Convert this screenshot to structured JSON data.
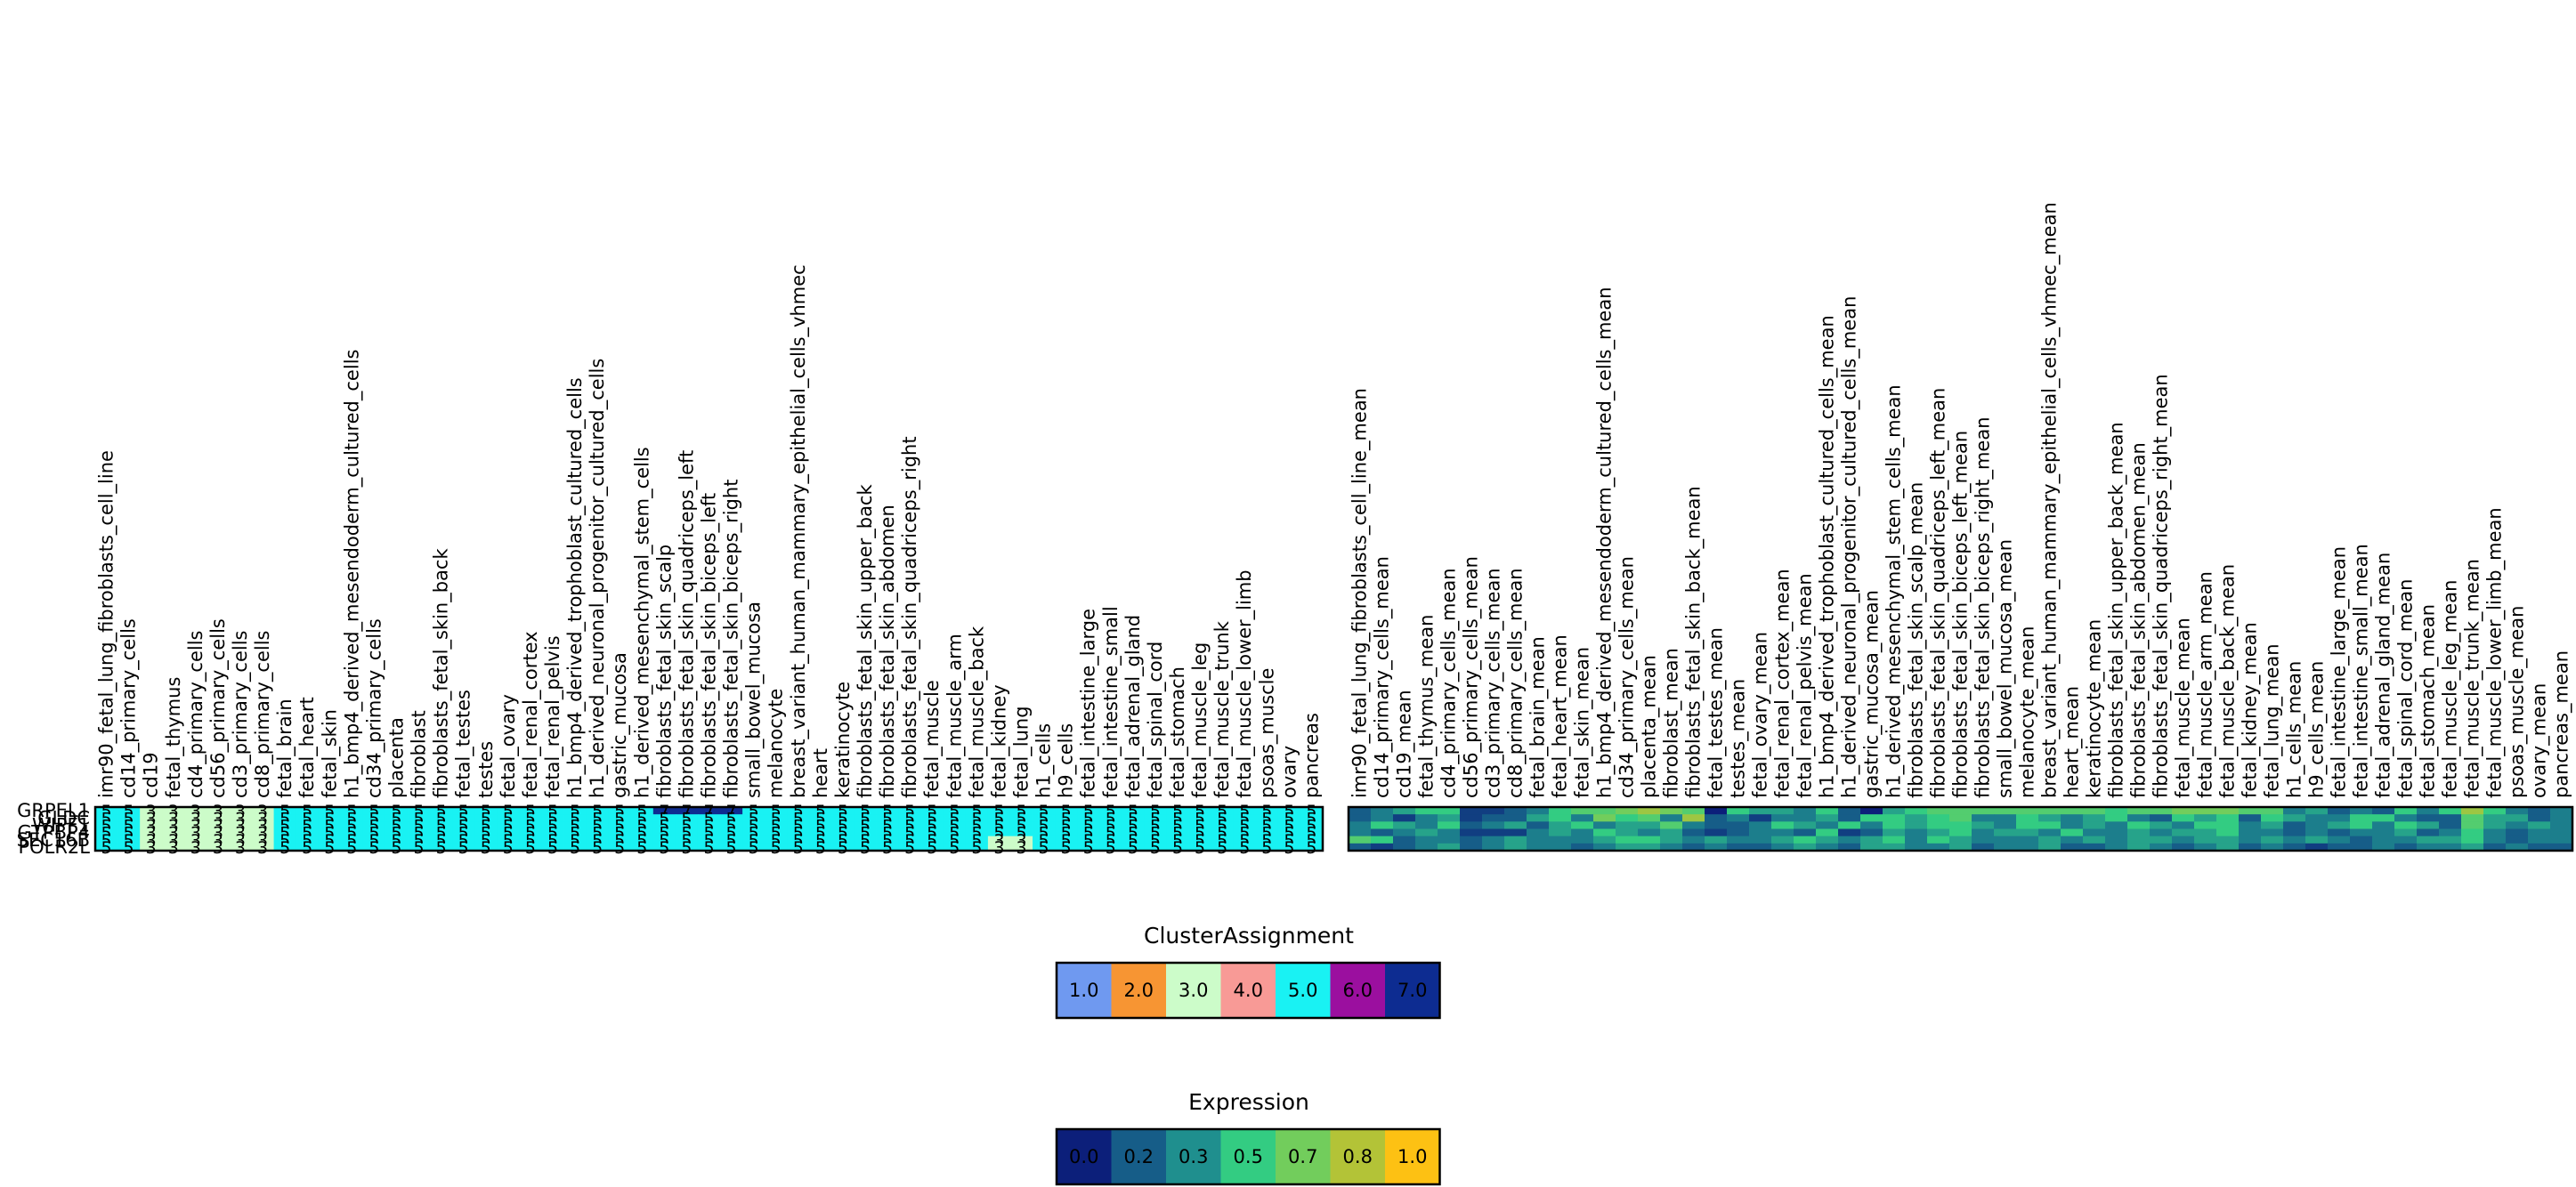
{
  "chart_data": [
    {
      "type": "heatmap",
      "title": "",
      "rows": [
        "GRPEL1",
        "GLDC",
        "WIPF1",
        "GTPBP4",
        "SEC16B",
        "POLR2L"
      ],
      "columns": [
        "imr90_fetal_lung_fibroblasts_cell_line",
        "cd14_primary_cells",
        "cd19",
        "fetal_thymus",
        "cd4_primary_cells",
        "cd56_primary_cells",
        "cd3_primary_cells",
        "cd8_primary_cells",
        "fetal_brain",
        "fetal_heart",
        "fetal_skin",
        "h1_bmp4_derived_mesendoderm_cultured_cells",
        "cd34_primary_cells",
        "placenta",
        "fibroblast",
        "fibroblasts_fetal_skin_back",
        "fetal_testes",
        "testes",
        "fetal_ovary",
        "fetal_renal_cortex",
        "fetal_renal_pelvis",
        "h1_bmp4_derived_trophoblast_cultured_cells",
        "h1_derived_neuronal_progenitor_cultured_cells",
        "gastric_mucosa",
        "h1_derived_mesenchymal_stem_cells",
        "fibroblasts_fetal_skin_scalp",
        "fibroblasts_fetal_skin_quadriceps_left",
        "fibroblasts_fetal_skin_biceps_left",
        "fibroblasts_fetal_skin_biceps_right",
        "small_bowel_mucosa",
        "melanocyte",
        "breast_variant_human_mammary_epithelial_cells_vhmec",
        "heart",
        "keratinocyte",
        "fibroblasts_fetal_skin_upper_back",
        "fibroblasts_fetal_skin_abdomen",
        "fibroblasts_fetal_skin_quadriceps_right",
        "fetal_muscle",
        "fetal_muscle_arm",
        "fetal_muscle_back",
        "fetal_kidney",
        "fetal_lung",
        "h1_cells",
        "h9_cells",
        "fetal_intestine_large",
        "fetal_intestine_small",
        "fetal_adrenal_gland",
        "fetal_spinal_cord",
        "fetal_stomach",
        "fetal_muscle_leg",
        "fetal_muscle_trunk",
        "fetal_muscle_lower_limb",
        "psoas_muscle",
        "ovary",
        "pancreas"
      ],
      "values": [
        [
          5,
          5,
          3,
          3,
          3,
          3,
          3,
          3,
          5,
          5,
          5,
          5,
          5,
          5,
          5,
          5,
          5,
          5,
          5,
          5,
          5,
          5,
          5,
          5,
          5,
          7,
          7,
          7,
          7,
          5,
          5,
          5,
          5,
          5,
          5,
          5,
          5,
          5,
          5,
          5,
          5,
          5,
          5,
          5,
          5,
          5,
          5,
          5,
          5,
          5,
          5,
          5,
          5,
          5,
          5
        ],
        [
          5,
          5,
          3,
          3,
          3,
          3,
          3,
          3,
          5,
          5,
          5,
          5,
          5,
          5,
          5,
          5,
          5,
          5,
          5,
          5,
          5,
          5,
          5,
          5,
          5,
          5,
          5,
          5,
          5,
          5,
          5,
          5,
          5,
          5,
          5,
          5,
          5,
          5,
          5,
          5,
          5,
          5,
          5,
          5,
          5,
          5,
          5,
          5,
          5,
          5,
          5,
          5,
          5,
          5,
          5
        ],
        [
          5,
          5,
          3,
          3,
          3,
          3,
          3,
          3,
          5,
          5,
          5,
          5,
          5,
          5,
          5,
          5,
          5,
          5,
          5,
          5,
          5,
          5,
          5,
          5,
          5,
          5,
          5,
          5,
          5,
          5,
          5,
          5,
          5,
          5,
          5,
          5,
          5,
          5,
          5,
          5,
          5,
          5,
          5,
          5,
          5,
          5,
          5,
          5,
          5,
          5,
          5,
          5,
          5,
          5,
          5
        ],
        [
          5,
          5,
          3,
          3,
          3,
          3,
          3,
          3,
          5,
          5,
          5,
          5,
          5,
          5,
          5,
          5,
          5,
          5,
          5,
          5,
          5,
          5,
          5,
          5,
          5,
          5,
          5,
          5,
          5,
          5,
          5,
          5,
          5,
          5,
          5,
          5,
          5,
          5,
          5,
          5,
          5,
          5,
          5,
          5,
          5,
          5,
          5,
          5,
          5,
          5,
          5,
          5,
          5,
          5,
          5
        ],
        [
          5,
          5,
          3,
          3,
          3,
          3,
          3,
          3,
          5,
          5,
          5,
          5,
          5,
          5,
          5,
          5,
          5,
          5,
          5,
          5,
          5,
          5,
          5,
          5,
          5,
          5,
          5,
          5,
          5,
          5,
          5,
          5,
          5,
          5,
          5,
          5,
          5,
          5,
          5,
          5,
          3,
          3,
          5,
          5,
          5,
          5,
          5,
          5,
          5,
          5,
          5,
          5,
          5,
          5,
          5
        ],
        [
          5,
          5,
          3,
          3,
          3,
          3,
          3,
          3,
          5,
          5,
          5,
          5,
          5,
          5,
          5,
          5,
          5,
          5,
          5,
          5,
          5,
          5,
          5,
          5,
          5,
          5,
          5,
          5,
          5,
          5,
          5,
          5,
          5,
          5,
          5,
          5,
          5,
          5,
          5,
          5,
          3,
          3,
          5,
          5,
          5,
          5,
          5,
          5,
          5,
          5,
          5,
          5,
          5,
          5,
          5
        ]
      ],
      "annotated": true,
      "colorbar": "ClusterAssignment"
    },
    {
      "type": "heatmap",
      "title": "",
      "rows": [
        "GRPEL1",
        "GLDC",
        "WIPF1",
        "GTPBP4",
        "SEC16B",
        "POLR2L"
      ],
      "columns": [
        "imr90_fetal_lung_fibroblasts_cell_line_mean",
        "cd14_primary_cells_mean",
        "cd19_mean",
        "fetal_thymus_mean",
        "cd4_primary_cells_mean",
        "cd56_primary_cells_mean",
        "cd3_primary_cells_mean",
        "cd8_primary_cells_mean",
        "fetal_brain_mean",
        "fetal_heart_mean",
        "fetal_skin_mean",
        "h1_bmp4_derived_mesendoderm_cultured_cells_mean",
        "cd34_primary_cells_mean",
        "placenta_mean",
        "fibroblast_mean",
        "fibroblasts_fetal_skin_back_mean",
        "fetal_testes_mean",
        "testes_mean",
        "fetal_ovary_mean",
        "fetal_renal_cortex_mean",
        "fetal_renal_pelvis_mean",
        "h1_bmp4_derived_trophoblast_cultured_cells_mean",
        "h1_derived_neuronal_progenitor_cultured_cells_mean",
        "gastric_mucosa_mean",
        "h1_derived_mesenchymal_stem_cells_mean",
        "fibroblasts_fetal_skin_scalp_mean",
        "fibroblasts_fetal_skin_quadriceps_left_mean",
        "fibroblasts_fetal_skin_biceps_left_mean",
        "fibroblasts_fetal_skin_biceps_right_mean",
        "small_bowel_mucosa_mean",
        "melanocyte_mean",
        "breast_variant_human_mammary_epithelial_cells_vhmec_mean",
        "heart_mean",
        "keratinocyte_mean",
        "fibroblasts_fetal_skin_upper_back_mean",
        "fibroblasts_fetal_skin_abdomen_mean",
        "fibroblasts_fetal_skin_quadriceps_right_mean",
        "fetal_muscle_mean",
        "fetal_muscle_arm_mean",
        "fetal_muscle_back_mean",
        "fetal_kidney_mean",
        "fetal_lung_mean",
        "h1_cells_mean",
        "h9_cells_mean",
        "fetal_intestine_large_mean",
        "fetal_intestine_small_mean",
        "fetal_adrenal_gland_mean",
        "fetal_spinal_cord_mean",
        "fetal_stomach_mean",
        "fetal_muscle_leg_mean",
        "fetal_muscle_trunk_mean",
        "fetal_muscle_lower_limb_mean",
        "psoas_muscle_mean",
        "ovary_mean",
        "pancreas_mean"
      ],
      "values": [
        [
          0.2,
          0.3,
          0.4,
          0.5,
          0.5,
          0.1,
          0.1,
          0.2,
          0.3,
          0.5,
          0.6,
          0.6,
          0.7,
          0.8,
          0.7,
          0.6,
          0.0,
          0.5,
          0.4,
          0.4,
          0.3,
          0.5,
          0.2,
          0.0,
          0.4,
          0.5,
          0.6,
          0.6,
          0.6,
          0.6,
          0.6,
          0.6,
          0.6,
          0.6,
          0.5,
          0.6,
          0.6,
          0.7,
          0.7,
          0.7,
          0.6,
          0.6,
          0.3,
          0.4,
          0.2,
          0.3,
          0.2,
          0.5,
          0.3,
          0.5,
          0.8,
          0.5,
          0.3,
          0.2,
          0.3
        ],
        [
          0.2,
          0.3,
          0.1,
          0.3,
          0.4,
          0.1,
          0.2,
          0.2,
          0.4,
          0.5,
          0.3,
          0.7,
          0.5,
          0.6,
          0.3,
          0.8,
          0.2,
          0.3,
          0.1,
          0.3,
          0.3,
          0.4,
          0.2,
          0.5,
          0.5,
          0.4,
          0.5,
          0.6,
          0.3,
          0.3,
          0.5,
          0.4,
          0.3,
          0.4,
          0.5,
          0.3,
          0.2,
          0.5,
          0.4,
          0.5,
          0.2,
          0.5,
          0.4,
          0.3,
          0.3,
          0.5,
          0.5,
          0.3,
          0.2,
          0.2,
          0.6,
          0.4,
          0.4,
          0.2,
          0.3
        ],
        [
          0.3,
          0.5,
          0.4,
          0.3,
          0.5,
          0.2,
          0.3,
          0.4,
          0.2,
          0.4,
          0.5,
          0.3,
          0.4,
          0.4,
          0.6,
          0.3,
          0.2,
          0.2,
          0.3,
          0.5,
          0.4,
          0.3,
          0.5,
          0.3,
          0.5,
          0.4,
          0.5,
          0.5,
          0.4,
          0.3,
          0.5,
          0.5,
          0.3,
          0.4,
          0.3,
          0.5,
          0.4,
          0.3,
          0.5,
          0.5,
          0.3,
          0.4,
          0.2,
          0.3,
          0.4,
          0.5,
          0.3,
          0.5,
          0.4,
          0.2,
          0.6,
          0.4,
          0.3,
          0.4,
          0.3
        ],
        [
          0.3,
          0.2,
          0.3,
          0.4,
          0.3,
          0.1,
          0.1,
          0.1,
          0.3,
          0.4,
          0.3,
          0.5,
          0.4,
          0.3,
          0.4,
          0.2,
          0.1,
          0.2,
          0.3,
          0.3,
          0.2,
          0.5,
          0.1,
          0.2,
          0.4,
          0.3,
          0.4,
          0.5,
          0.3,
          0.4,
          0.4,
          0.3,
          0.5,
          0.3,
          0.3,
          0.4,
          0.3,
          0.4,
          0.4,
          0.5,
          0.3,
          0.3,
          0.2,
          0.3,
          0.2,
          0.3,
          0.3,
          0.4,
          0.2,
          0.3,
          0.5,
          0.3,
          0.2,
          0.3,
          0.3
        ],
        [
          0.6,
          0.5,
          0.2,
          0.3,
          0.3,
          0.2,
          0.3,
          0.4,
          0.3,
          0.3,
          0.3,
          0.4,
          0.5,
          0.5,
          0.4,
          0.3,
          0.4,
          0.3,
          0.3,
          0.4,
          0.5,
          0.4,
          0.3,
          0.4,
          0.5,
          0.3,
          0.5,
          0.4,
          0.3,
          0.3,
          0.3,
          0.4,
          0.3,
          0.4,
          0.3,
          0.4,
          0.4,
          0.3,
          0.4,
          0.4,
          0.3,
          0.4,
          0.3,
          0.4,
          0.3,
          0.2,
          0.3,
          0.3,
          0.4,
          0.4,
          0.5,
          0.3,
          0.2,
          0.3,
          0.3
        ],
        [
          0.2,
          0.1,
          0.2,
          0.3,
          0.4,
          0.2,
          0.3,
          0.4,
          0.3,
          0.3,
          0.2,
          0.3,
          0.4,
          0.4,
          0.3,
          0.2,
          0.3,
          0.2,
          0.2,
          0.3,
          0.4,
          0.3,
          0.2,
          0.4,
          0.4,
          0.3,
          0.3,
          0.4,
          0.2,
          0.3,
          0.3,
          0.4,
          0.2,
          0.2,
          0.3,
          0.4,
          0.3,
          0.2,
          0.3,
          0.4,
          0.2,
          0.3,
          0.2,
          0.1,
          0.2,
          0.2,
          0.3,
          0.2,
          0.3,
          0.3,
          0.4,
          0.2,
          0.3,
          0.2,
          0.2
        ]
      ],
      "annotated": false,
      "colorbar": "Expression"
    }
  ],
  "legends": {
    "cluster": {
      "title": "ClusterAssignment",
      "items": [
        {
          "label": "1.0",
          "color": "#6f99f0"
        },
        {
          "label": "2.0",
          "color": "#f79533"
        },
        {
          "label": "3.0",
          "color": "#ccfcc9"
        },
        {
          "label": "4.0",
          "color": "#f89a96"
        },
        {
          "label": "5.0",
          "color": "#19f2f3"
        },
        {
          "label": "6.0",
          "color": "#9b0f9f"
        },
        {
          "label": "7.0",
          "color": "#0d2c91"
        }
      ]
    },
    "expression": {
      "title": "Expression",
      "items": [
        {
          "label": "0.0",
          "color": "#0c1f7a"
        },
        {
          "label": "0.2",
          "color": "#165d88"
        },
        {
          "label": "0.3",
          "color": "#1f8f8e"
        },
        {
          "label": "0.5",
          "color": "#33cc82"
        },
        {
          "label": "0.7",
          "color": "#72cd5c"
        },
        {
          "label": "0.8",
          "color": "#b3c337"
        },
        {
          "label": "1.0",
          "color": "#fdc113"
        }
      ]
    }
  }
}
